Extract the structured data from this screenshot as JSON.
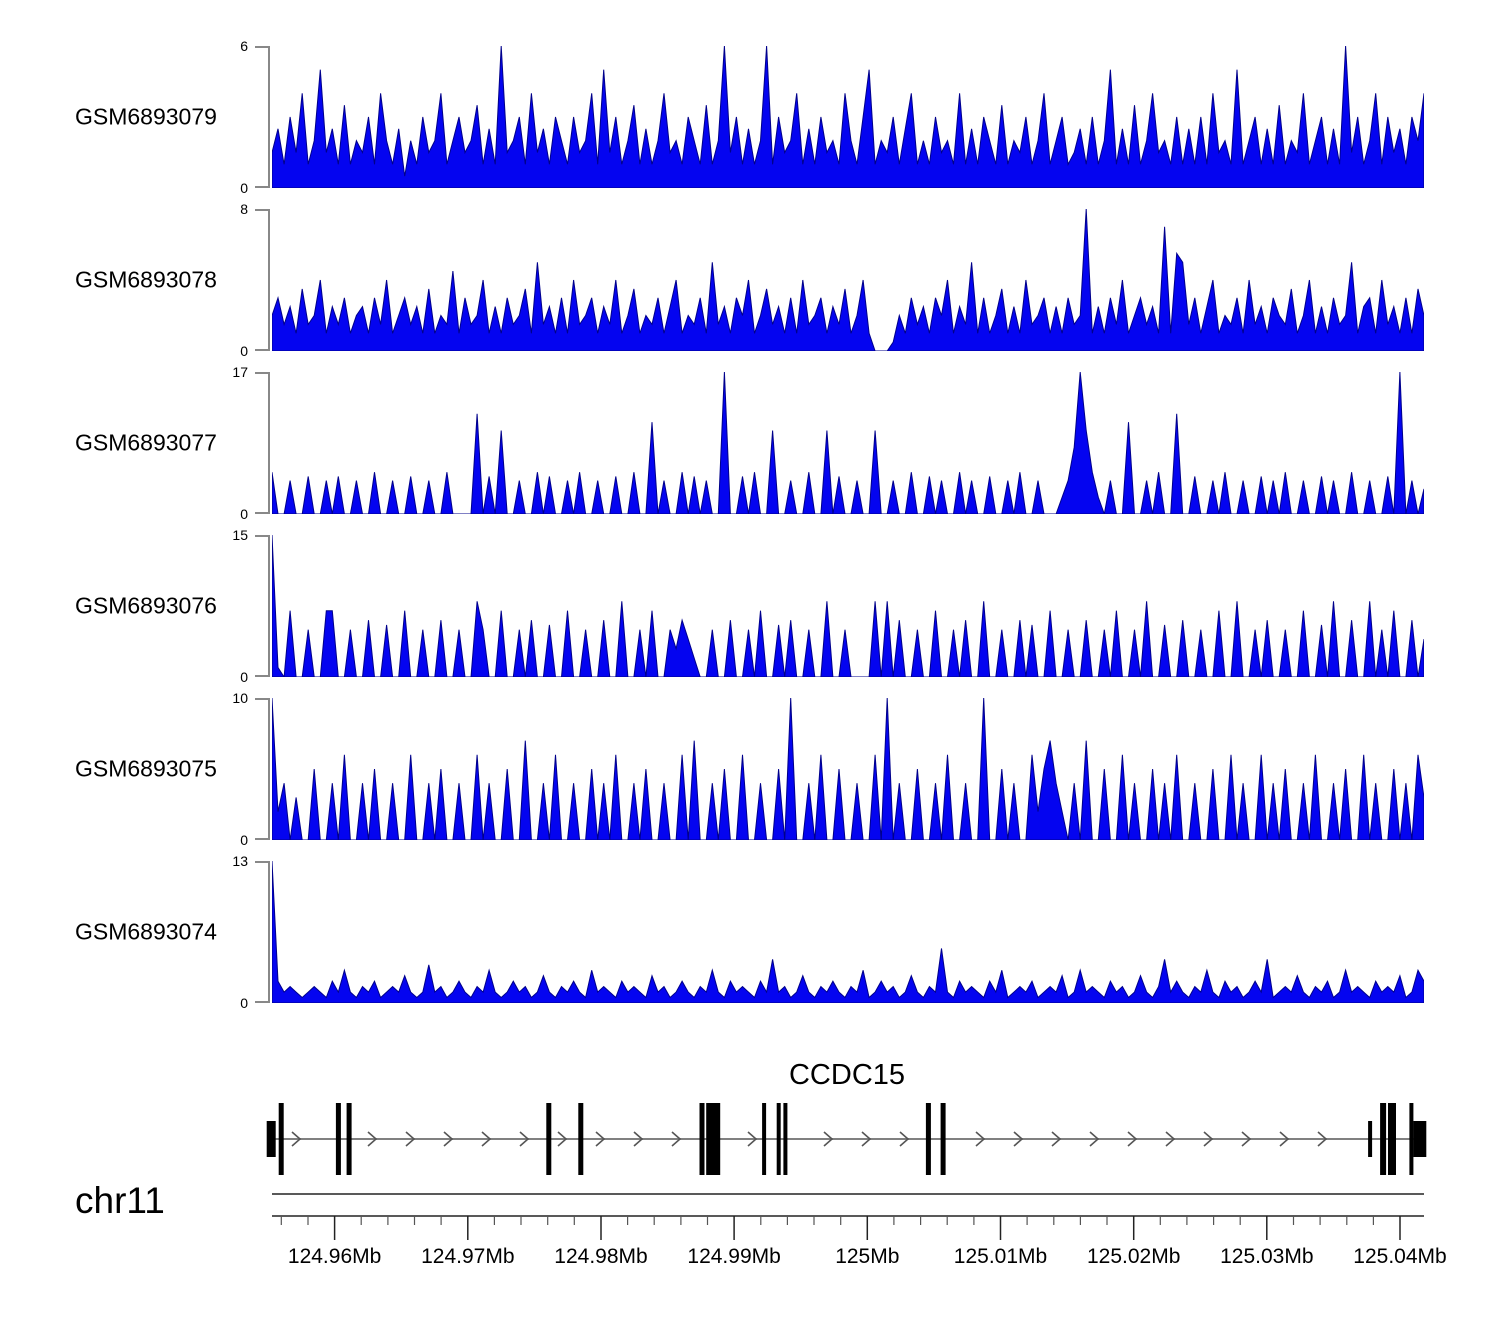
{
  "colors": {
    "data_fill": "#0404f0",
    "data_stroke": "#00008b",
    "y_axis_line": "#888888",
    "gene_line": "#808080",
    "gene_fill": "#000000",
    "arrow": "#555555",
    "axis_line": "#222222",
    "text": "#000000"
  },
  "chart_data": [
    {
      "type": "area",
      "name": "GSM6893079",
      "ylim": [
        0,
        6
      ],
      "ylabel_top": "6",
      "ylabel_bottom": "0",
      "values": [
        1.5,
        2.5,
        1,
        3,
        1.5,
        4,
        1,
        2,
        5,
        1.5,
        2.5,
        1,
        3.5,
        1,
        2,
        1.5,
        3,
        1,
        4,
        2,
        1,
        2.5,
        0.5,
        2,
        1,
        3,
        1.5,
        2,
        4,
        1,
        2,
        3,
        1.5,
        2,
        3.5,
        1,
        2.5,
        1,
        6,
        1.5,
        2,
        3,
        1,
        4,
        1.5,
        2.5,
        1,
        3,
        2,
        1,
        3,
        1.5,
        2,
        4,
        1,
        5,
        1.5,
        3,
        1,
        2,
        3.5,
        1,
        2.5,
        1,
        2,
        4,
        1.5,
        2,
        1,
        3,
        2,
        1,
        3.5,
        1,
        2,
        6,
        1.5,
        3,
        1,
        2.5,
        1,
        2,
        6,
        1,
        3,
        1.5,
        2,
        4,
        1,
        2.5,
        1,
        3,
        1.5,
        2,
        1,
        4,
        2,
        1,
        3,
        5,
        1,
        2,
        1.5,
        3,
        1,
        2.5,
        4,
        1,
        2,
        1,
        3,
        1.5,
        2,
        1,
        4,
        1,
        2.5,
        1,
        3,
        2,
        1,
        3.5,
        1,
        2,
        1.5,
        3,
        1,
        2,
        4,
        1,
        2,
        3,
        1,
        1.5,
        2.5,
        1,
        3,
        1,
        2,
        5,
        1,
        2.5,
        1,
        3.5,
        1,
        2,
        4,
        1.5,
        2,
        1,
        3,
        1,
        2.5,
        1,
        3,
        1,
        4,
        1.5,
        2,
        1,
        5,
        1,
        2,
        3,
        1,
        2.5,
        1,
        3.5,
        1,
        2,
        1.5,
        4,
        1,
        2,
        3,
        1,
        2.5,
        1,
        6,
        1.5,
        3,
        1,
        2,
        4,
        1,
        3,
        1.5,
        2.5,
        1,
        3,
        2,
        4
      ]
    },
    {
      "type": "area",
      "name": "GSM6893078",
      "ylim": [
        0,
        8
      ],
      "ylabel_top": "8",
      "ylabel_bottom": "0",
      "values": [
        2,
        3,
        1.5,
        2.5,
        1,
        3.5,
        1.5,
        2,
        4,
        1,
        2.5,
        1.5,
        3,
        1,
        2,
        2.5,
        1,
        3,
        1.5,
        4,
        1,
        2,
        3,
        1.5,
        2.5,
        1,
        3.5,
        1,
        2,
        1.5,
        4.5,
        1,
        3,
        1.5,
        2,
        4,
        1,
        2.5,
        1,
        3,
        1.5,
        2,
        3.5,
        1,
        5,
        1.5,
        2.5,
        1,
        3,
        1,
        4,
        1.5,
        2,
        3,
        1,
        2.5,
        1.5,
        4,
        1,
        2,
        3.5,
        1,
        2,
        1.5,
        3,
        1,
        2.5,
        4,
        1,
        2,
        1.5,
        3,
        1,
        5,
        1.5,
        2.5,
        1,
        3,
        2,
        4,
        1,
        2,
        3.5,
        1.5,
        2.5,
        1,
        3,
        1,
        4,
        1.5,
        2,
        3,
        1,
        2.5,
        1.5,
        3.5,
        1,
        2,
        4,
        1,
        0,
        0,
        0,
        0.5,
        2,
        1,
        3,
        1.5,
        2.5,
        1,
        3,
        2,
        4,
        1,
        2.5,
        1.5,
        5,
        1,
        3,
        1,
        2,
        3.5,
        1,
        2.5,
        1,
        4,
        1.5,
        2,
        3,
        1,
        2.5,
        1,
        3,
        1.5,
        2,
        8,
        1,
        2.5,
        1,
        3,
        1.5,
        4,
        1,
        2,
        3,
        1.5,
        2.5,
        1,
        7,
        1,
        5.5,
        5,
        1.5,
        3,
        1,
        2.5,
        4,
        1,
        2,
        1.5,
        3,
        1,
        4,
        1.5,
        2.5,
        1,
        3,
        2,
        1.5,
        3.5,
        1,
        2,
        4,
        1,
        2.5,
        1,
        3,
        1.5,
        2,
        5,
        1,
        2.5,
        3,
        1,
        4,
        1.5,
        2.5,
        1,
        3,
        1,
        3.5,
        2
      ]
    },
    {
      "type": "area",
      "name": "GSM6893077",
      "ylim": [
        0,
        17
      ],
      "ylabel_top": "17",
      "ylabel_bottom": "0",
      "values": [
        5,
        0,
        0,
        4,
        0,
        0,
        4.5,
        0,
        0,
        4,
        0,
        4.5,
        0,
        0,
        4,
        0,
        0,
        5,
        0,
        0,
        4,
        0,
        0,
        4.5,
        0,
        0,
        4,
        0,
        0,
        5,
        0,
        0,
        0,
        0,
        12,
        0,
        4.5,
        0,
        10,
        0,
        0,
        4,
        0,
        0,
        5,
        0,
        4.5,
        0,
        0,
        4,
        0,
        5,
        0,
        0,
        4,
        0,
        0,
        4.5,
        0,
        0,
        5,
        0,
        0,
        11,
        0,
        4,
        0,
        0,
        5,
        0,
        4.5,
        0,
        4,
        0,
        0,
        17,
        0,
        0,
        4.5,
        0,
        5,
        0,
        0,
        10,
        0,
        0,
        4,
        0,
        0,
        5,
        0,
        0,
        10,
        0,
        4.5,
        0,
        0,
        4,
        0,
        0,
        10,
        0,
        0,
        4,
        0,
        0,
        5,
        0,
        0,
        4.5,
        0,
        4,
        0,
        0,
        5,
        0,
        4,
        0,
        0,
        4.5,
        0,
        0,
        4,
        0,
        5,
        0,
        0,
        4,
        0,
        0,
        0,
        2,
        4,
        8,
        17,
        10,
        5,
        2,
        0,
        4,
        0,
        0,
        11,
        0,
        0,
        4,
        0,
        5,
        0,
        0,
        12,
        0,
        0,
        4.5,
        0,
        0,
        4,
        0,
        5,
        0,
        0,
        4,
        0,
        0,
        4.5,
        0,
        4,
        0,
        5,
        0,
        0,
        4,
        0,
        0,
        4.5,
        0,
        4,
        0,
        0,
        5,
        0,
        0,
        4,
        0,
        0,
        4.5,
        0,
        17,
        0,
        4,
        0,
        3
      ]
    },
    {
      "type": "area",
      "name": "GSM6893076",
      "ylim": [
        0,
        15
      ],
      "ylabel_top": "15",
      "ylabel_bottom": "0",
      "values": [
        15,
        1,
        0,
        7,
        0,
        0,
        5,
        0,
        0,
        7,
        7,
        0,
        0,
        5,
        0,
        0,
        6,
        0,
        0,
        5.5,
        0,
        0,
        7,
        0,
        0,
        5,
        0,
        0,
        6,
        0,
        0,
        5,
        0,
        0,
        8,
        5,
        0,
        0,
        7,
        0,
        0,
        5,
        0,
        6,
        0,
        0,
        5.5,
        0,
        0,
        7,
        0,
        0,
        5,
        0,
        0,
        6,
        0,
        0,
        8,
        0,
        0,
        5,
        0,
        7,
        0,
        0,
        5,
        3,
        6,
        4,
        2,
        0,
        0,
        5,
        0,
        0,
        6,
        0,
        0,
        5,
        0,
        7,
        0,
        0,
        5.5,
        0,
        6,
        0,
        0,
        5,
        0,
        0,
        8,
        0,
        0,
        5,
        0,
        0,
        0,
        0,
        8,
        0,
        8,
        0,
        6,
        0,
        0,
        5,
        0,
        0,
        7,
        0,
        0,
        5,
        0,
        6,
        0,
        0,
        8,
        0,
        0,
        5,
        0,
        0,
        6,
        0,
        5.5,
        0,
        0,
        7,
        0,
        0,
        5,
        0,
        0,
        6,
        0,
        0,
        5,
        0,
        7,
        0,
        0,
        5,
        0,
        8,
        0,
        0,
        5.5,
        0,
        0,
        6,
        0,
        0,
        5,
        0,
        0,
        7,
        0,
        0,
        8,
        0,
        0,
        5,
        0,
        6,
        0,
        0,
        5,
        0,
        0,
        7,
        0,
        0,
        5.5,
        0,
        8,
        0,
        0,
        6,
        0,
        0,
        8,
        0,
        5,
        0,
        7,
        0,
        0,
        6,
        0,
        4
      ]
    },
    {
      "type": "area",
      "name": "GSM6893075",
      "ylim": [
        0,
        10
      ],
      "ylabel_top": "10",
      "ylabel_bottom": "0",
      "values": [
        10,
        2,
        4,
        0,
        3,
        0,
        0,
        5,
        0,
        0,
        4,
        0,
        6,
        0,
        0,
        4,
        0,
        5,
        0,
        0,
        4,
        0,
        0,
        6,
        0,
        0,
        4,
        0,
        5,
        0,
        0,
        4,
        0,
        0,
        6,
        0,
        4,
        0,
        0,
        5,
        0,
        0,
        7,
        0,
        0,
        4,
        0,
        6,
        0,
        0,
        4,
        0,
        0,
        5,
        0,
        4,
        0,
        6,
        0,
        0,
        4,
        0,
        5,
        0,
        0,
        4,
        0,
        0,
        6,
        0,
        7,
        0,
        0,
        4,
        0,
        5,
        0,
        0,
        6,
        0,
        0,
        4,
        0,
        0,
        5,
        0,
        10,
        0,
        0,
        4,
        0,
        6,
        0,
        0,
        5,
        0,
        0,
        4,
        0,
        0,
        6,
        0,
        10,
        0,
        4,
        0,
        0,
        5,
        0,
        0,
        4,
        0,
        6,
        0,
        0,
        4,
        0,
        0,
        10,
        0,
        0,
        5,
        0,
        4,
        0,
        0,
        6,
        2,
        5,
        7,
        4,
        2,
        0,
        4,
        0,
        7,
        0,
        0,
        5,
        0,
        0,
        6,
        0,
        4,
        0,
        0,
        5,
        0,
        4,
        0,
        6,
        0,
        0,
        4,
        0,
        0,
        5,
        0,
        0,
        6,
        0,
        4,
        0,
        0,
        6,
        0,
        4,
        0,
        5,
        0,
        0,
        4,
        0,
        6,
        0,
        0,
        4,
        0,
        5,
        0,
        0,
        6,
        0,
        4,
        0,
        0,
        5,
        0,
        4,
        0,
        6,
        3
      ]
    },
    {
      "type": "area",
      "name": "GSM6893074",
      "ylim": [
        0,
        13
      ],
      "ylabel_top": "13",
      "ylabel_bottom": "0",
      "values": [
        13,
        2,
        1,
        1.5,
        1,
        0.5,
        1,
        1.5,
        1,
        0.5,
        2,
        1,
        3,
        1,
        0.5,
        1.5,
        1,
        2,
        0.5,
        1,
        1.5,
        1,
        2.5,
        1,
        0.5,
        1,
        3.5,
        1,
        1.5,
        0.5,
        1,
        2,
        1,
        0.5,
        1.5,
        1,
        3,
        1,
        0.5,
        1,
        2,
        1,
        1.5,
        0.5,
        1,
        2.5,
        1,
        0.5,
        1.5,
        1,
        2,
        1,
        0.5,
        3,
        1,
        1.5,
        1,
        0.5,
        2,
        1,
        1.5,
        1,
        0.5,
        2.5,
        1,
        1.5,
        0.5,
        1,
        2,
        1,
        0.5,
        1.5,
        1,
        3,
        1,
        0.5,
        2,
        1,
        1.5,
        1,
        0.5,
        2,
        1,
        4,
        1,
        1.5,
        0.5,
        1,
        2.5,
        1,
        0.5,
        1.5,
        1,
        2,
        1,
        0.5,
        1.5,
        1,
        3,
        0.5,
        1,
        2,
        1,
        1.5,
        0.5,
        1,
        2.5,
        1,
        0.5,
        1.5,
        1,
        5,
        1,
        0.5,
        2,
        1,
        1.5,
        1,
        0.5,
        2,
        1,
        3,
        0.5,
        1,
        1.5,
        1,
        2,
        0.5,
        1,
        1.5,
        1,
        2.5,
        0.5,
        1,
        3,
        1,
        1.5,
        1,
        0.5,
        2,
        1,
        1.5,
        0.5,
        1,
        2.5,
        1,
        0.5,
        1.5,
        4,
        1,
        2,
        1,
        0.5,
        1.5,
        1,
        3,
        1,
        0.5,
        2,
        1,
        1.5,
        0.5,
        1,
        2,
        1,
        4,
        0.5,
        1,
        1.5,
        1,
        2.5,
        1,
        0.5,
        1.5,
        1,
        2,
        0.5,
        1,
        3,
        1,
        1.5,
        1,
        0.5,
        2,
        1,
        1.5,
        1,
        2.5,
        0.5,
        1,
        3,
        2
      ]
    }
  ],
  "gene_track": {
    "gene": "CCDC15",
    "strand": "+",
    "exons": [
      {
        "start_kb": 124954.9,
        "width_bp": 676,
        "kind": "utr"
      },
      {
        "start_kb": 124955.8,
        "width_bp": 375,
        "kind": "cds"
      },
      {
        "start_kb": 124960.1,
        "width_bp": 375,
        "kind": "cds"
      },
      {
        "start_kb": 124960.9,
        "width_bp": 375,
        "kind": "cds"
      },
      {
        "start_kb": 124975.9,
        "width_bp": 375,
        "kind": "cds"
      },
      {
        "start_kb": 124978.3,
        "width_bp": 375,
        "kind": "cds"
      },
      {
        "start_kb": 124987.4,
        "width_bp": 375,
        "kind": "cds"
      },
      {
        "start_kb": 124987.9,
        "width_bp": 1051,
        "kind": "cds"
      },
      {
        "start_kb": 124992.1,
        "width_bp": 300,
        "kind": "cds"
      },
      {
        "start_kb": 124993.2,
        "width_bp": 300,
        "kind": "cds"
      },
      {
        "start_kb": 124993.7,
        "width_bp": 300,
        "kind": "cds"
      },
      {
        "start_kb": 125004.4,
        "width_bp": 375,
        "kind": "cds"
      },
      {
        "start_kb": 125005.5,
        "width_bp": 375,
        "kind": "cds"
      },
      {
        "start_kb": 125037.6,
        "width_bp": 300,
        "kind": "utr"
      },
      {
        "start_kb": 125038.5,
        "width_bp": 450,
        "kind": "cds"
      },
      {
        "start_kb": 125039.1,
        "width_bp": 600,
        "kind": "cds"
      },
      {
        "start_kb": 125040.7,
        "width_bp": 300,
        "kind": "cds"
      },
      {
        "start_kb": 125041.0,
        "width_bp": 976,
        "kind": "utr"
      }
    ]
  },
  "axis": {
    "chromosome": "chr11",
    "start_mb": 124.9553,
    "end_mb": 125.0418,
    "minor_step_kb": 2,
    "major_ticks": [
      {
        "kb": 124960,
        "label": "124.96Mb"
      },
      {
        "kb": 124970,
        "label": "124.97Mb"
      },
      {
        "kb": 124980,
        "label": "124.98Mb"
      },
      {
        "kb": 124990,
        "label": "124.99Mb"
      },
      {
        "kb": 125000,
        "label": "125Mb"
      },
      {
        "kb": 125010,
        "label": "125.01Mb"
      },
      {
        "kb": 125020,
        "label": "125.02Mb"
      },
      {
        "kb": 125030,
        "label": "125.03Mb"
      },
      {
        "kb": 125040,
        "label": "125.04Mb"
      }
    ]
  }
}
